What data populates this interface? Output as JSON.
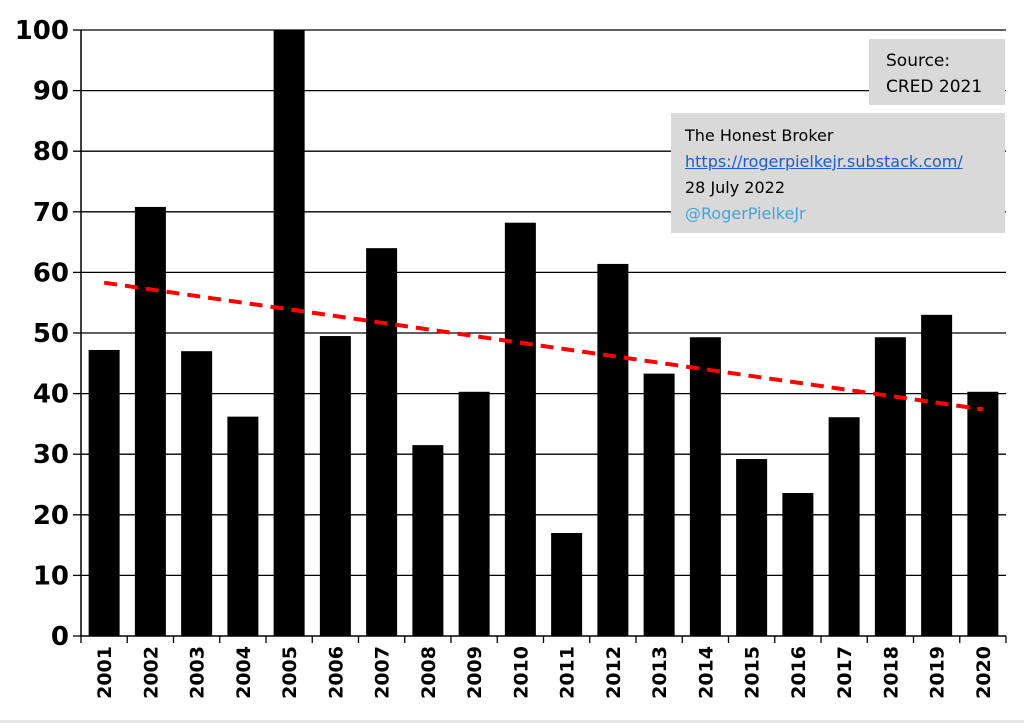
{
  "chart_data": {
    "type": "bar",
    "categories": [
      "2001",
      "2002",
      "2003",
      "2004",
      "2005",
      "2006",
      "2007",
      "2008",
      "2009",
      "2010",
      "2011",
      "2012",
      "2013",
      "2014",
      "2015",
      "2016",
      "2017",
      "2018",
      "2019",
      "2020"
    ],
    "values": [
      47.2,
      70.8,
      47.0,
      36.2,
      100,
      49.5,
      64.0,
      31.5,
      40.3,
      68.2,
      17.0,
      61.4,
      43.3,
      49.3,
      29.2,
      23.6,
      36.1,
      49.3,
      53.0,
      40.3
    ],
    "ylim": [
      0,
      100
    ],
    "yticks": [
      0,
      10,
      20,
      30,
      40,
      50,
      60,
      70,
      80,
      90,
      100
    ],
    "grid": true,
    "bar_color": "#000000",
    "trendline": {
      "start": [
        2001,
        58.3
      ],
      "end": [
        2020,
        37.4
      ],
      "color": "#ff0000",
      "style": "dashed"
    },
    "title": "",
    "xlabel": "",
    "ylabel": ""
  },
  "annotations": {
    "source_lines": [
      "Source:",
      "CRED 2021"
    ],
    "credit_title": "The Honest Broker",
    "credit_url": "https://rogerpielkejr.substack.com/",
    "credit_date": "28 July 2022",
    "credit_handle": "@RogerPielkeJr"
  }
}
